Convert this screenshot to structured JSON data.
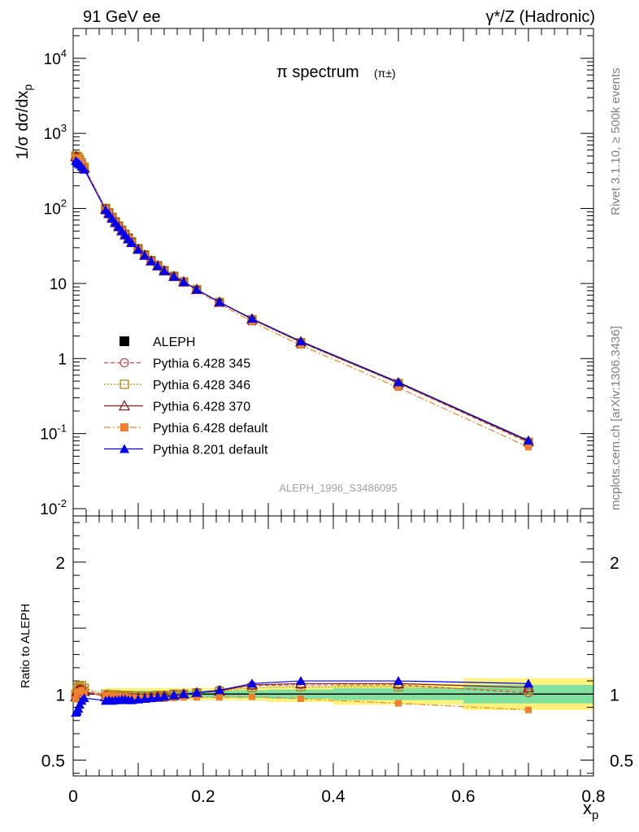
{
  "header": {
    "left": "91 GeV ee",
    "right": "γ*/Z (Hadronic)"
  },
  "side_text": {
    "top": "Rivet 3.1.10, ≥ 500k events",
    "bottom": "mcplots.cern.ch [arXiv:1306.3436]"
  },
  "chart_data": [
    {
      "type": "line",
      "title": "π spectrum",
      "title_suffix": "(π±)",
      "ylabel": "1/σ dσ/dx_p",
      "xlabel": "",
      "yscale": "log",
      "ylim": [
        0.008,
        25000
      ],
      "xlim": [
        0,
        0.8
      ],
      "y_ticks": [
        "10^4",
        "10^3",
        "10^2",
        "10",
        "1",
        "10^-1",
        "10^-2"
      ],
      "watermark": "ALEPH_1996_S3486095",
      "legend_position": "lower-left",
      "x": [
        0.004,
        0.006,
        0.008,
        0.01,
        0.013,
        0.017,
        0.05,
        0.055,
        0.06,
        0.065,
        0.07,
        0.075,
        0.08,
        0.085,
        0.09,
        0.1,
        0.11,
        0.12,
        0.13,
        0.14,
        0.155,
        0.17,
        0.19,
        0.225,
        0.275,
        0.35,
        0.5,
        0.7
      ],
      "series": [
        {
          "name": "ALEPH",
          "color": "#000000",
          "marker": "filled-square",
          "line": "none",
          "values": [
            500,
            470,
            450,
            420,
            380,
            340,
            100,
            88,
            77,
            67,
            59,
            52,
            46,
            41,
            36.5,
            29.5,
            24.5,
            20.5,
            17.5,
            15,
            12.5,
            10.5,
            8.2,
            5.5,
            3.15,
            1.55,
            0.44,
            0.075
          ]
        },
        {
          "name": "Pythia 6.428 345",
          "color": "#c0504d",
          "marker": "open-circle",
          "line": "dashed",
          "values": [
            495,
            480,
            465,
            435,
            395,
            350,
            99,
            86.5,
            75.5,
            65.5,
            58,
            51,
            45,
            40,
            35.5,
            28.8,
            23.9,
            20.1,
            17.3,
            14.9,
            12.5,
            10.5,
            8.3,
            5.65,
            3.35,
            1.65,
            0.47,
            0.076
          ]
        },
        {
          "name": "Pythia 6.428 346",
          "color": "#b8860b",
          "marker": "open-square",
          "line": "dotted",
          "values": [
            500,
            490,
            475,
            445,
            405,
            355,
            100,
            87.5,
            76.5,
            66.5,
            58.5,
            51.5,
            45.5,
            40.5,
            35.9,
            29.1,
            24.1,
            20.2,
            17.3,
            14.9,
            12.5,
            10.5,
            8.3,
            5.6,
            3.3,
            1.63,
            0.465,
            0.077
          ]
        },
        {
          "name": "Pythia 6.428 370",
          "color": "#8b1a1a",
          "marker": "open-triangle",
          "line": "solid",
          "values": [
            490,
            478,
            462,
            432,
            392,
            348,
            98,
            86,
            75,
            65,
            57.5,
            50.5,
            44.5,
            39.5,
            35.2,
            28.6,
            23.8,
            20,
            17.2,
            14.8,
            12.4,
            10.5,
            8.3,
            5.62,
            3.36,
            1.67,
            0.475,
            0.079
          ]
        },
        {
          "name": "Pythia 6.428 default",
          "color": "#f08030",
          "marker": "filled-square",
          "line": "dash-dot",
          "values": [
            480,
            475,
            460,
            430,
            390,
            345,
            99,
            87,
            76,
            66,
            58,
            51,
            45,
            40,
            35.4,
            28.7,
            23.7,
            19.8,
            17,
            14.6,
            12.2,
            10.3,
            8,
            5.35,
            3.08,
            1.5,
            0.41,
            0.066
          ]
        },
        {
          "name": "Pythia 8.201 default",
          "color": "#0000ee",
          "marker": "filled-triangle",
          "line": "solid",
          "values": [
            430,
            410,
            400,
            385,
            360,
            330,
            95,
            84,
            73,
            64,
            56.5,
            49.8,
            44,
            39,
            34.8,
            28.3,
            23.6,
            19.8,
            17.1,
            14.7,
            12.4,
            10.5,
            8.3,
            5.65,
            3.4,
            1.7,
            0.485,
            0.081
          ]
        }
      ]
    },
    {
      "type": "line",
      "ylabel": "Ratio to ALEPH",
      "xlabel": "x_p",
      "ylim": [
        0.38,
        2.35
      ],
      "xlim": [
        0,
        0.8
      ],
      "y_ticks": [
        "2",
        "1",
        "0.5"
      ],
      "x_ticks": [
        "0",
        "0.2",
        "0.4",
        "0.6",
        "0.8"
      ],
      "reference_line": 1,
      "band_colors": {
        "inner": "#7fe0a0",
        "outer": "#fff27a"
      },
      "bands": {
        "x_edges": [
          0.05,
          0.2,
          0.25,
          0.3,
          0.4,
          0.6,
          0.8
        ],
        "inner": [
          0.025,
          0.025,
          0.03,
          0.035,
          0.045,
          0.07
        ],
        "outer": [
          0.045,
          0.045,
          0.05,
          0.06,
          0.08,
          0.12
        ]
      },
      "x": [
        0.004,
        0.006,
        0.008,
        0.01,
        0.013,
        0.017,
        0.05,
        0.055,
        0.06,
        0.065,
        0.07,
        0.075,
        0.08,
        0.085,
        0.09,
        0.1,
        0.11,
        0.12,
        0.13,
        0.14,
        0.155,
        0.17,
        0.19,
        0.225,
        0.275,
        0.35,
        0.5,
        0.7
      ],
      "series": [
        {
          "name": "Pythia 6.428 345",
          "color": "#c0504d",
          "marker": "open-circle",
          "line": "dashed",
          "values": [
            0.99,
            1.02,
            1.03,
            1.04,
            1.04,
            1.03,
            0.99,
            0.985,
            0.98,
            0.98,
            0.98,
            0.98,
            0.975,
            0.975,
            0.975,
            0.975,
            0.975,
            0.98,
            0.985,
            0.99,
            1.0,
            1.0,
            1.01,
            1.03,
            1.065,
            1.07,
            1.07,
            1.01
          ]
        },
        {
          "name": "Pythia 6.428 346",
          "color": "#b8860b",
          "marker": "open-square",
          "line": "dotted",
          "values": [
            1.0,
            1.04,
            1.05,
            1.06,
            1.065,
            1.045,
            1.0,
            0.995,
            0.995,
            0.995,
            0.99,
            0.99,
            0.99,
            0.99,
            0.985,
            0.985,
            0.985,
            0.985,
            0.99,
            0.99,
            1.0,
            1.0,
            1.01,
            1.02,
            1.05,
            1.055,
            1.055,
            1.03
          ]
        },
        {
          "name": "Pythia 6.428 370",
          "color": "#8b1a1a",
          "marker": "open-triangle",
          "line": "solid",
          "values": [
            0.98,
            1.02,
            1.03,
            1.03,
            1.03,
            1.02,
            0.98,
            0.975,
            0.975,
            0.97,
            0.97,
            0.97,
            0.965,
            0.965,
            0.965,
            0.97,
            0.97,
            0.975,
            0.98,
            0.985,
            0.99,
            1.0,
            1.01,
            1.025,
            1.07,
            1.08,
            1.08,
            1.05
          ]
        },
        {
          "name": "Pythia 6.428 default",
          "color": "#f08030",
          "marker": "filled-square",
          "line": "dash-dot",
          "values": [
            0.96,
            1.01,
            1.02,
            1.02,
            1.03,
            1.01,
            0.99,
            0.99,
            0.99,
            0.985,
            0.985,
            0.98,
            0.98,
            0.975,
            0.97,
            0.97,
            0.965,
            0.965,
            0.965,
            0.965,
            0.97,
            0.975,
            0.975,
            0.975,
            0.98,
            0.965,
            0.93,
            0.88
          ]
        },
        {
          "name": "Pythia 8.201 default",
          "color": "#0000ee",
          "marker": "filled-triangle",
          "line": "solid",
          "values": [
            0.86,
            0.87,
            0.89,
            0.92,
            0.95,
            0.97,
            0.95,
            0.955,
            0.95,
            0.955,
            0.955,
            0.96,
            0.96,
            0.955,
            0.955,
            0.96,
            0.965,
            0.97,
            0.975,
            0.98,
            0.99,
            1.0,
            1.01,
            1.03,
            1.08,
            1.1,
            1.1,
            1.08
          ]
        }
      ]
    }
  ]
}
